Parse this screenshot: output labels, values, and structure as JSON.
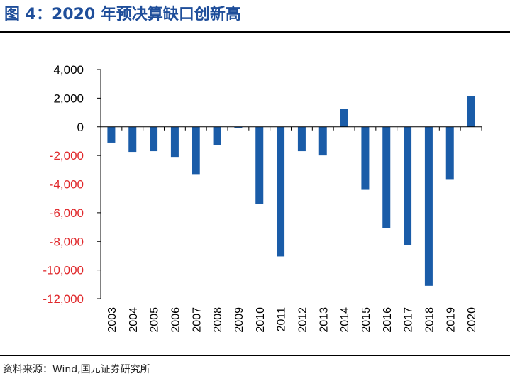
{
  "header": {
    "title": "图 4：2020 年预决算缺口创新高"
  },
  "footer": {
    "source": "资料来源：Wind,国元证券研究所"
  },
  "colors": {
    "bar": "#1a5ca8",
    "title": "#1f4e9a",
    "negative_tick": "#e0282b",
    "positive_tick": "#000000"
  },
  "chart_data": {
    "type": "bar",
    "title": "",
    "xlabel": "",
    "ylabel": "",
    "ylim": [
      -12000,
      4000
    ],
    "yticks": [
      4000,
      2000,
      0,
      -2000,
      -4000,
      -6000,
      -8000,
      -10000,
      -12000
    ],
    "ytick_labels": [
      "4,000",
      "2,000",
      "0",
      "-2,000",
      "-4,000",
      "-6,000",
      "-8,000",
      "-10,000",
      "-12,000"
    ],
    "categories": [
      "2003",
      "2004",
      "2005",
      "2006",
      "2007",
      "2008",
      "2009",
      "2010",
      "2011",
      "2012",
      "2013",
      "2014",
      "2015",
      "2016",
      "2017",
      "2018",
      "2019",
      "2020"
    ],
    "values": [
      -1100,
      -1750,
      -1700,
      -2100,
      -3300,
      -1300,
      -100,
      -5400,
      -9050,
      -1700,
      -2000,
      1250,
      -4400,
      -7050,
      -8250,
      -11100,
      -3650,
      2150
    ],
    "grid": false,
    "legend": "none"
  }
}
